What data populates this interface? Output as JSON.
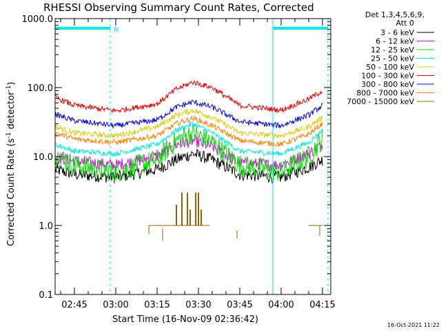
{
  "chart_data": {
    "type": "line",
    "title": "RHESSI Observing Summary Count Rates, Corrected",
    "xlabel": "Start Time (16-Nov-09 02:36:42)",
    "ylabel_parts": {
      "main": "Corrected Count Rate (s",
      "sup": "-1",
      "mid": " detector",
      "sup2": "-1",
      "end": ")"
    },
    "y_scale": "log",
    "ylim": [
      0.1,
      1000.0
    ],
    "y_ticks": [
      "0.1",
      "1.0",
      "10.0",
      "100.0",
      "1000.0"
    ],
    "xlim": [
      "02:38",
      "04:18"
    ],
    "x_ticks": [
      "02:45",
      "03:00",
      "03:15",
      "03:30",
      "03:45",
      "04:00",
      "04:15"
    ],
    "legend_placement": "right",
    "legend_header": [
      "Det 1,3,4,5,6,9,",
      "Att 0"
    ],
    "series": [
      {
        "name": "3 - 6 keV",
        "color": "#000000",
        "values": [
          [
            "02:38",
            6.5
          ],
          [
            "02:45",
            5.5
          ],
          [
            "03:00",
            5.0
          ],
          [
            "03:15",
            6.5
          ],
          [
            "03:22",
            9.0
          ],
          [
            "03:28",
            11.0
          ],
          [
            "03:35",
            9.0
          ],
          [
            "03:45",
            5.5
          ],
          [
            "04:00",
            5.0
          ],
          [
            "04:10",
            7.0
          ],
          [
            "04:15",
            9.0
          ]
        ]
      },
      {
        "name": "6 - 12 keV",
        "color": "#e000e0",
        "values": [
          [
            "02:38",
            10.0
          ],
          [
            "02:45",
            8.5
          ],
          [
            "03:00",
            7.5
          ],
          [
            "03:15",
            10.0
          ],
          [
            "03:22",
            15.0
          ],
          [
            "03:28",
            17.0
          ],
          [
            "03:35",
            14.0
          ],
          [
            "03:45",
            8.0
          ],
          [
            "04:00",
            7.5
          ],
          [
            "04:10",
            11.0
          ],
          [
            "04:15",
            15.0
          ]
        ]
      },
      {
        "name": "12 - 25 keV",
        "color": "#00e000",
        "values": [
          [
            "02:38",
            10.5
          ],
          [
            "02:45",
            7.5
          ],
          [
            "03:00",
            6.0
          ],
          [
            "03:15",
            9.0
          ],
          [
            "03:22",
            17.0
          ],
          [
            "03:28",
            22.0
          ],
          [
            "03:35",
            16.0
          ],
          [
            "03:45",
            7.5
          ],
          [
            "04:00",
            6.0
          ],
          [
            "04:10",
            10.0
          ],
          [
            "04:15",
            18.0
          ]
        ]
      },
      {
        "name": "25 - 50 keV",
        "color": "#00e8e8",
        "values": [
          [
            "02:38",
            15.0
          ],
          [
            "02:45",
            12.0
          ],
          [
            "03:00",
            11.0
          ],
          [
            "03:15",
            15.0
          ],
          [
            "03:22",
            24.0
          ],
          [
            "03:28",
            30.0
          ],
          [
            "03:35",
            22.0
          ],
          [
            "03:45",
            12.0
          ],
          [
            "04:00",
            11.0
          ],
          [
            "04:10",
            16.0
          ],
          [
            "04:15",
            24.0
          ]
        ]
      },
      {
        "name": "50 - 100 keV",
        "color": "#dcc800",
        "values": [
          [
            "02:38",
            27.0
          ],
          [
            "02:45",
            22.0
          ],
          [
            "03:00",
            20.0
          ],
          [
            "03:15",
            27.0
          ],
          [
            "03:22",
            40.0
          ],
          [
            "03:28",
            47.0
          ],
          [
            "03:35",
            37.0
          ],
          [
            "03:45",
            22.0
          ],
          [
            "04:00",
            20.0
          ],
          [
            "04:10",
            27.0
          ],
          [
            "04:15",
            37.0
          ]
        ]
      },
      {
        "name": "100 - 300 keV",
        "color": "#e00000",
        "values": [
          [
            "02:38",
            72.0
          ],
          [
            "02:45",
            55.0
          ],
          [
            "03:00",
            46.0
          ],
          [
            "03:15",
            58.0
          ],
          [
            "03:22",
            95.0
          ],
          [
            "03:28",
            120.0
          ],
          [
            "03:35",
            100.0
          ],
          [
            "03:45",
            55.0
          ],
          [
            "04:00",
            47.0
          ],
          [
            "04:10",
            68.0
          ],
          [
            "04:15",
            90.0
          ]
        ]
      },
      {
        "name": "300 - 800 keV",
        "color": "#0000e0",
        "values": [
          [
            "02:38",
            41.0
          ],
          [
            "02:45",
            33.0
          ],
          [
            "03:00",
            28.0
          ],
          [
            "03:15",
            34.0
          ],
          [
            "03:22",
            52.0
          ],
          [
            "03:28",
            62.0
          ],
          [
            "03:35",
            52.0
          ],
          [
            "03:45",
            32.0
          ],
          [
            "04:00",
            28.0
          ],
          [
            "04:10",
            40.0
          ],
          [
            "04:15",
            55.0
          ]
        ]
      },
      {
        "name": "800 - 7000 keV",
        "color": "#ff8000",
        "values": [
          [
            "02:38",
            22.0
          ],
          [
            "02:45",
            18.0
          ],
          [
            "03:00",
            16.0
          ],
          [
            "03:15",
            20.0
          ],
          [
            "03:22",
            30.0
          ],
          [
            "03:28",
            36.0
          ],
          [
            "03:35",
            28.0
          ],
          [
            "03:45",
            17.0
          ],
          [
            "04:00",
            15.0
          ],
          [
            "04:10",
            21.0
          ],
          [
            "04:15",
            30.0
          ]
        ]
      },
      {
        "name": "7000 - 15000 keV",
        "color": "#8c6400",
        "values": []
      }
    ],
    "olive_spikes": [
      [
        "03:22",
        1.0,
        2.0
      ],
      [
        "03:24",
        1.0,
        3.0
      ],
      [
        "03:26",
        1.0,
        3.0
      ],
      [
        "03:27",
        1.0,
        1.7
      ],
      [
        "03:29",
        1.0,
        3.0
      ],
      [
        "03:30",
        1.0,
        3.0
      ],
      [
        "03:31",
        1.0,
        1.7
      ]
    ],
    "olive_segments": [
      {
        "from": "03:12",
        "to": "03:34",
        "y": 1.0
      },
      {
        "from": "04:10",
        "to": "04:15",
        "y": 1.0
      }
    ],
    "olive_drops": [
      {
        "x": "03:12",
        "y0": 1.0,
        "y1": 0.75
      },
      {
        "x": "03:17",
        "y0": 0.9,
        "y1": 0.6
      },
      {
        "x": "03:44",
        "y0": 0.85,
        "y1": 0.65
      },
      {
        "x": "04:14",
        "y0": 1.0,
        "y1": 0.7
      }
    ],
    "periods": [
      {
        "type": "night",
        "from": "02:38",
        "to": "02:58"
      },
      {
        "type": "night",
        "from": "03:57",
        "to": "04:17"
      }
    ],
    "period_mark": {
      "label": "N",
      "at": "02:58"
    }
  },
  "timestamp": "16-Oct-2021 11:22"
}
